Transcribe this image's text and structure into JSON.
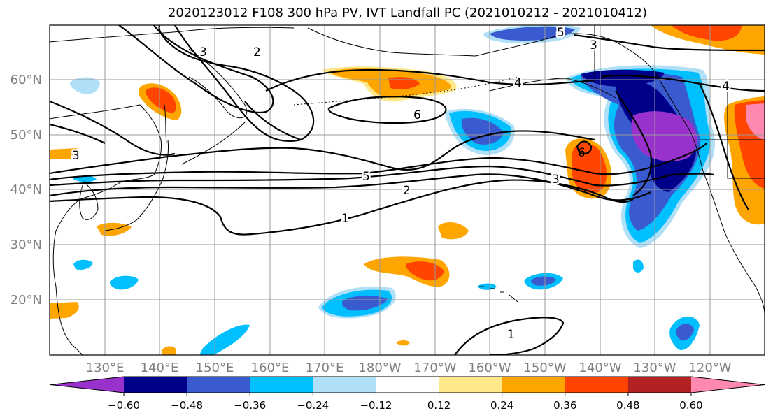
{
  "title": "2020123012 F108 300 hPa PV, IVT Landfall PC (2021010212 - 2021010412)",
  "lat_labels": [
    "60°N",
    "50°N",
    "40°N",
    "30°N",
    "20°N"
  ],
  "lon_labels": [
    "130°E",
    "140°E",
    "150°E",
    "160°E",
    "170°E",
    "180°W",
    "170°W",
    "160°W",
    "150°W",
    "140°W",
    "130°W",
    "120°W"
  ],
  "contour_labels": [
    "3",
    "2",
    "5",
    "3",
    "4",
    "4",
    "6",
    "5",
    "2",
    "3",
    "1",
    "1",
    "6",
    "3"
  ],
  "colorbar": {
    "colors": [
      "#9932cc",
      "#00008b",
      "#3a5bcf",
      "#00bfff",
      "#b0e0f8",
      "#ffffff",
      "#ffe88a",
      "#ffa500",
      "#ff4500",
      "#b22222",
      "#ff88b0"
    ],
    "tick_labels": [
      "−0.60",
      "−0.48",
      "−0.36",
      "−0.24",
      "−0.12",
      "0.12",
      "0.24",
      "0.36",
      "0.48",
      "0.60"
    ]
  }
}
